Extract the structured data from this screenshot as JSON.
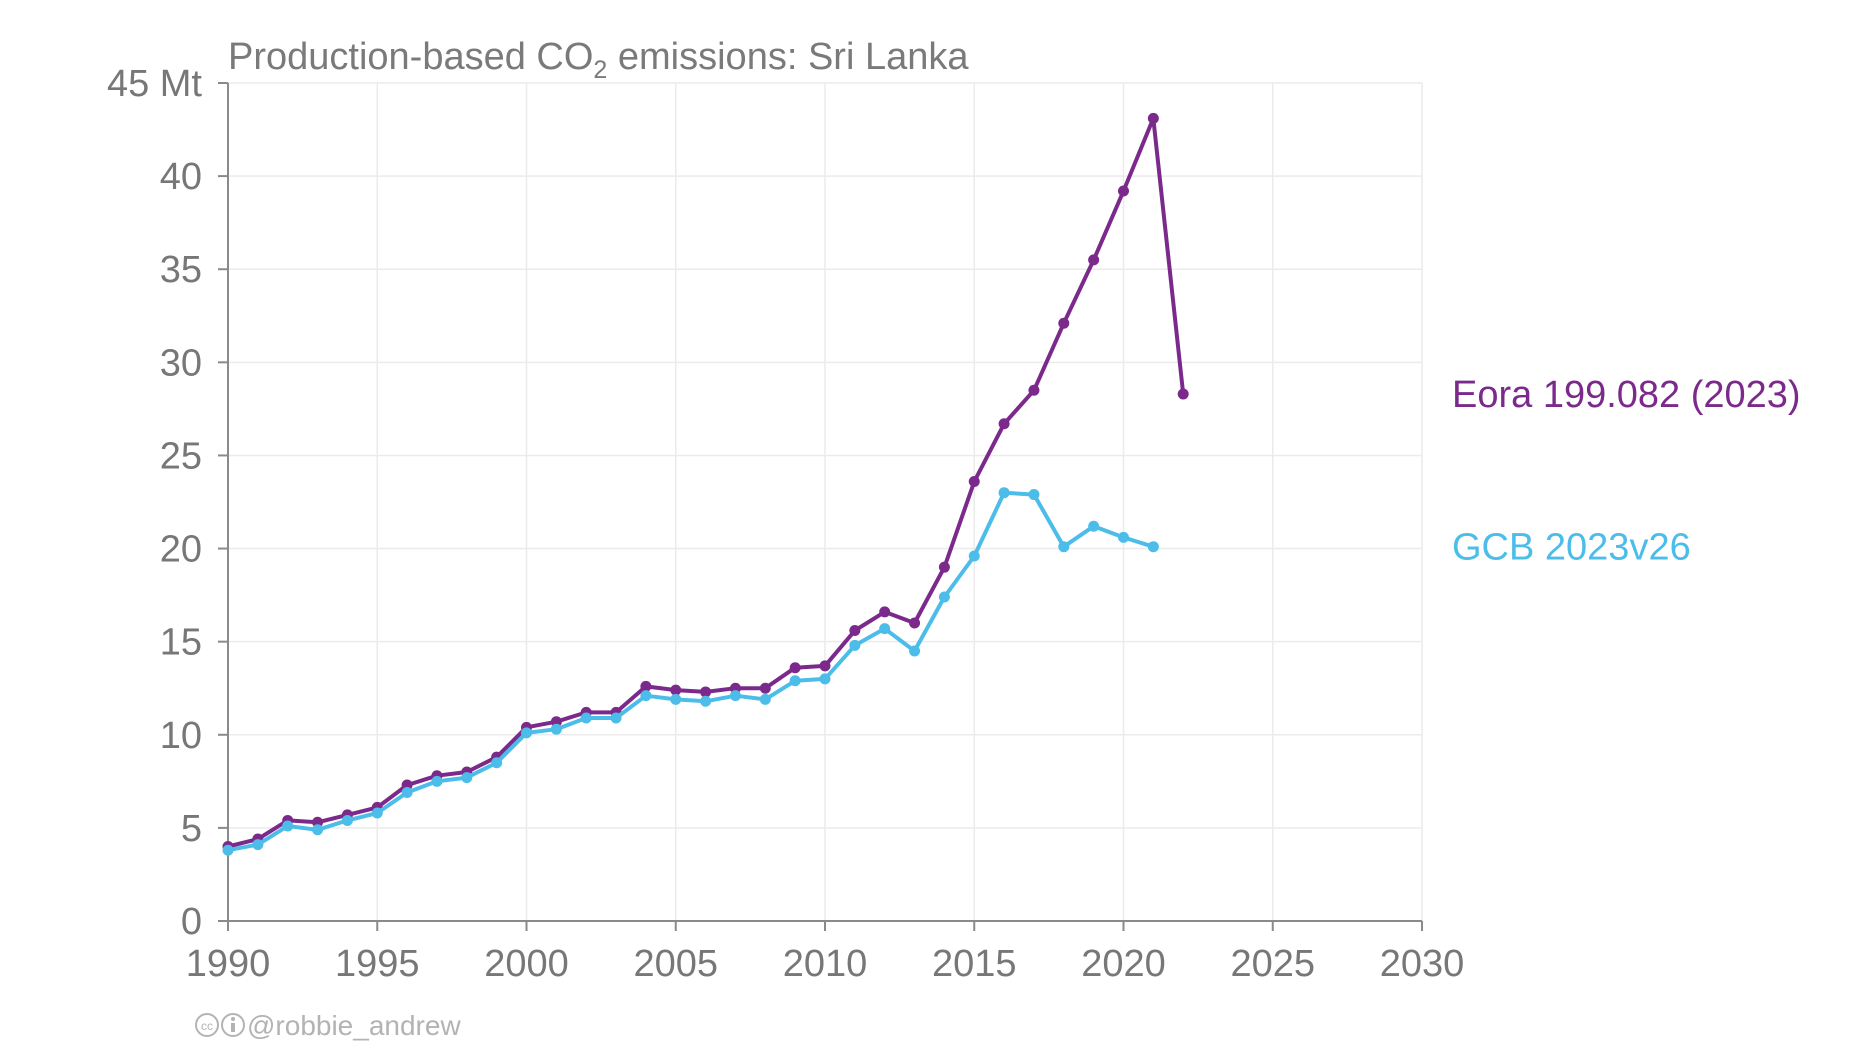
{
  "chart_data": {
    "type": "line",
    "title": {
      "prefix": "Production-based CO",
      "subscript": "2",
      "suffix": " emissions: Sri Lanka"
    },
    "xlim": [
      1990,
      2030
    ],
    "ylim": [
      0,
      45
    ],
    "x_ticks": [
      1990,
      1995,
      2000,
      2005,
      2010,
      2015,
      2020,
      2025,
      2030
    ],
    "y_ticks": [
      0,
      5,
      10,
      15,
      20,
      25,
      30,
      35,
      40,
      45
    ],
    "y_unit": "Mt",
    "grid": true,
    "series": [
      {
        "name": "Eora 199.082 (2023)",
        "color": "#7b2a8c",
        "x": [
          1990,
          1991,
          1992,
          1993,
          1994,
          1995,
          1996,
          1997,
          1998,
          1999,
          2000,
          2001,
          2002,
          2003,
          2004,
          2005,
          2006,
          2007,
          2008,
          2009,
          2010,
          2011,
          2012,
          2013,
          2014,
          2015,
          2016,
          2017,
          2018,
          2019,
          2020,
          2021,
          2022
        ],
        "values": [
          4.0,
          4.4,
          5.4,
          5.3,
          5.7,
          6.1,
          7.3,
          7.8,
          8.0,
          8.8,
          10.4,
          10.7,
          11.2,
          11.2,
          12.6,
          12.4,
          12.3,
          12.5,
          12.5,
          13.6,
          13.7,
          15.6,
          16.6,
          16.0,
          19.0,
          23.6,
          26.7,
          28.5,
          32.1,
          35.5,
          39.2,
          43.1,
          28.3
        ]
      },
      {
        "name": "GCB 2023v26",
        "color": "#4cbde9",
        "x": [
          1990,
          1991,
          1992,
          1993,
          1994,
          1995,
          1996,
          1997,
          1998,
          1999,
          2000,
          2001,
          2002,
          2003,
          2004,
          2005,
          2006,
          2007,
          2008,
          2009,
          2010,
          2011,
          2012,
          2013,
          2014,
          2015,
          2016,
          2017,
          2018,
          2019,
          2020,
          2021
        ],
        "values": [
          3.8,
          4.1,
          5.1,
          4.9,
          5.4,
          5.8,
          6.9,
          7.5,
          7.7,
          8.5,
          10.1,
          10.3,
          10.9,
          10.9,
          12.1,
          11.9,
          11.8,
          12.1,
          11.9,
          12.9,
          13.0,
          14.8,
          15.7,
          14.5,
          17.4,
          19.6,
          23.0,
          22.9,
          20.1,
          21.2,
          20.6,
          20.1
        ]
      }
    ]
  },
  "credit": {
    "icons": "cc-by-icons",
    "text": "@robbie_andrew"
  }
}
